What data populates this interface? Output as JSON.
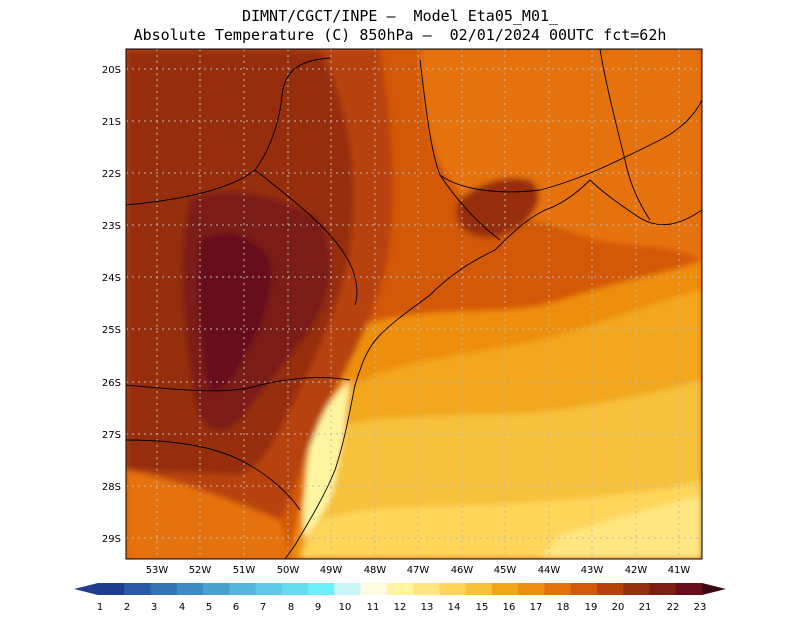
{
  "header": {
    "title_line1": "DIMNT/CGCT/INPE –  Model Eta05_M01_",
    "title_line2": "Absolute Temperature (C) 850hPa –  02/01/2024 00UTC fct=62h"
  },
  "map": {
    "lat_labels": [
      "20S",
      "21S",
      "22S",
      "23S",
      "24S",
      "25S",
      "26S",
      "27S",
      "28S",
      "29S"
    ],
    "lon_labels": [
      "53W",
      "52W",
      "51W",
      "50W",
      "49W",
      "48W",
      "47W",
      "46W",
      "45W",
      "44W",
      "43W",
      "42W",
      "41W"
    ]
  },
  "colorbar": {
    "labels": [
      "1",
      "2",
      "3",
      "4",
      "5",
      "6",
      "7",
      "8",
      "9",
      "10",
      "11",
      "12",
      "13",
      "14",
      "15",
      "16",
      "17",
      "18",
      "19",
      "20",
      "21",
      "22",
      "23"
    ],
    "colors": [
      "#1f3d8f",
      "#2a5aa5",
      "#3474b5",
      "#3d8bc2",
      "#4aa0cf",
      "#55b5dc",
      "#5ec9e8",
      "#63dcf0",
      "#6cf0fb",
      "#ccf5f8",
      "#fffbe3",
      "#fff5a0",
      "#ffe680",
      "#ffd55a",
      "#f7c13a",
      "#f2a71a",
      "#ee8e10",
      "#e6720a",
      "#d35808",
      "#b8420a",
      "#962e10",
      "#7c1d14",
      "#680d1a"
    ],
    "under_color": "#1f3d8f",
    "over_color": "#3c0b12"
  }
}
